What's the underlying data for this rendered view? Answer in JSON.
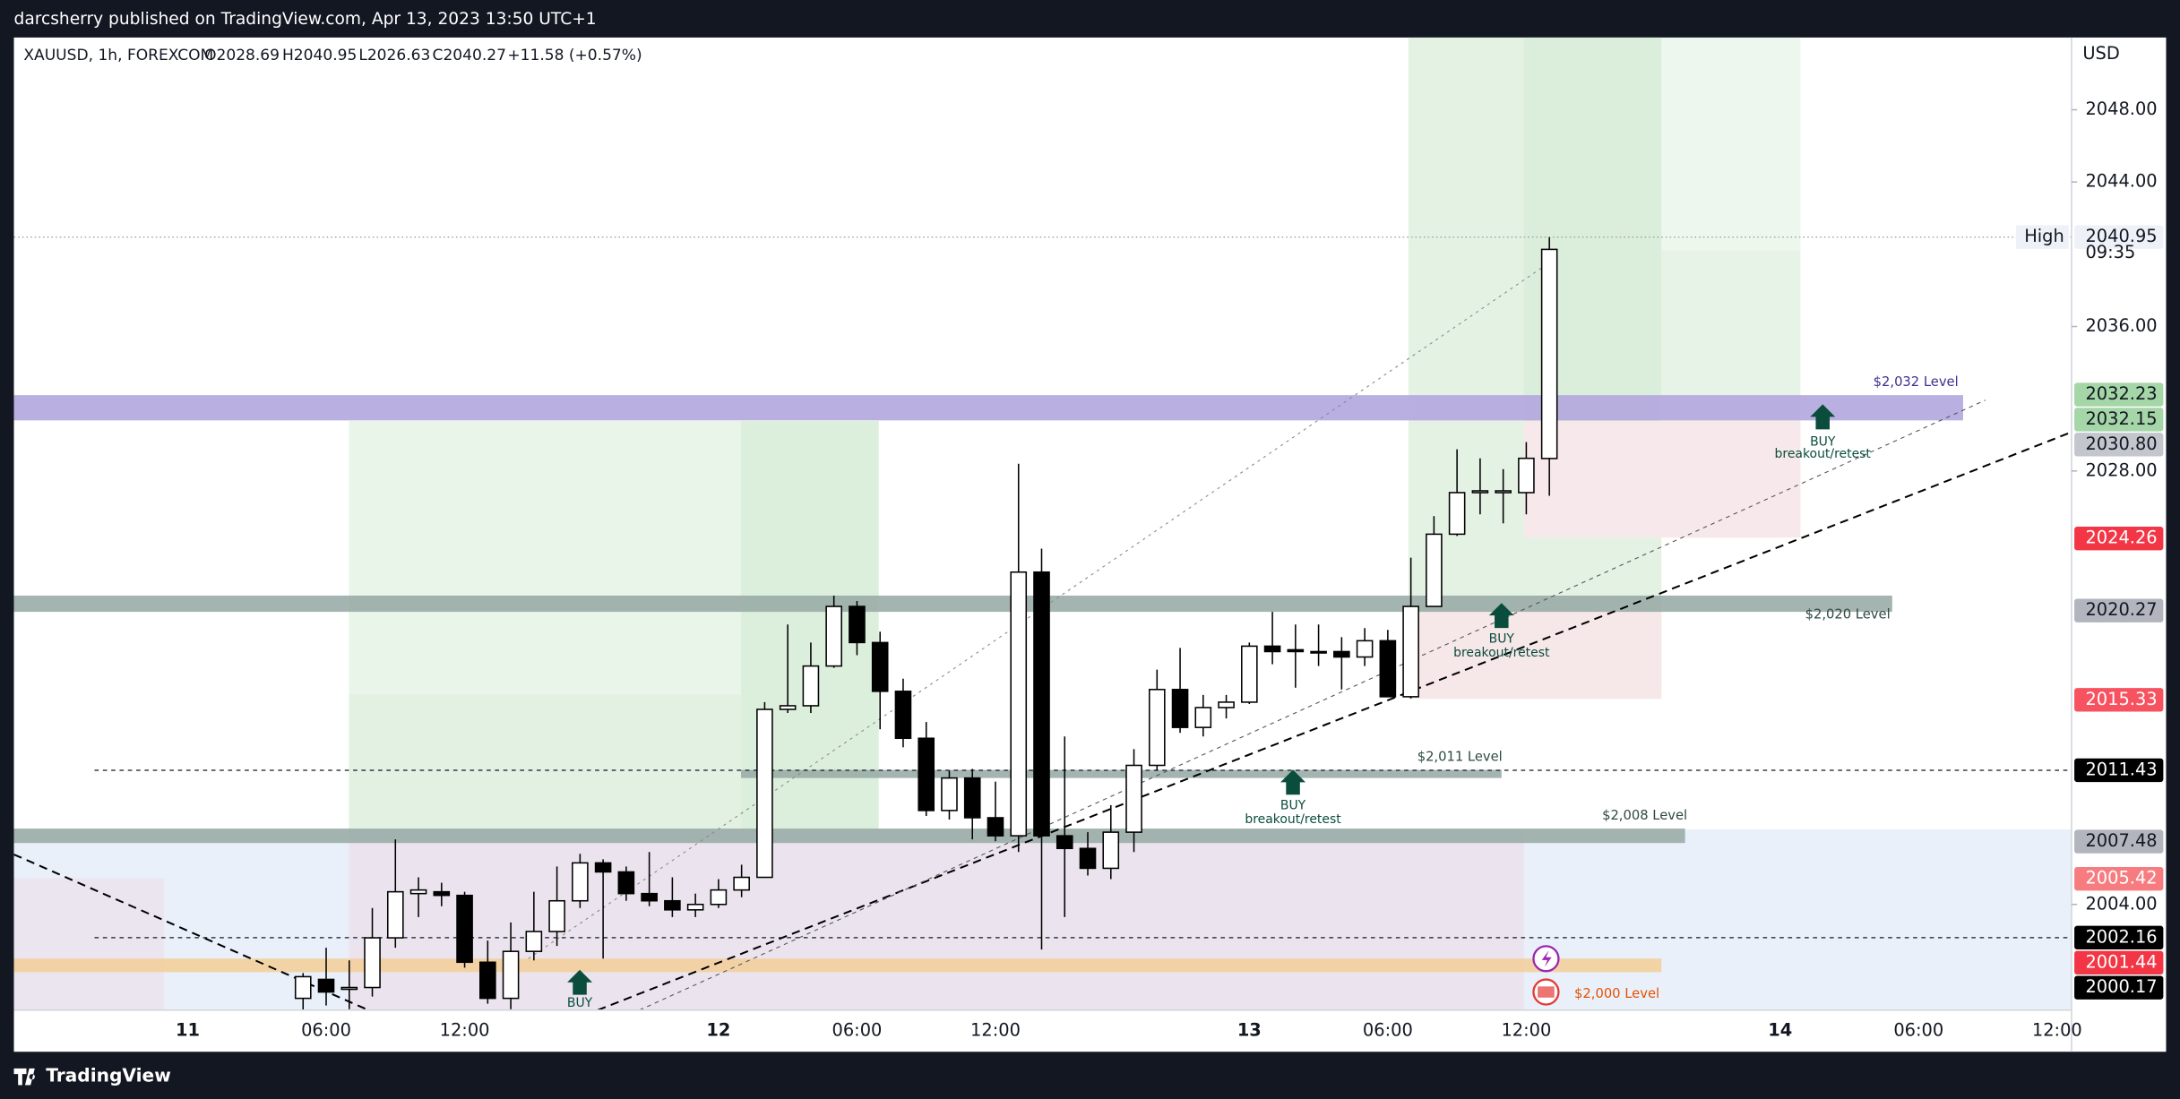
{
  "header": {
    "publisher": "darcsherry published on TradingView.com, Apr 13, 2023 13:50 UTC+1",
    "footer": "TradingView"
  },
  "chart_data": {
    "type": "candlestick",
    "title": "XAUUSD, 1h, FOREXCOM",
    "legend": [
      "O2028.69",
      "H2040.95",
      "L2026.63",
      "C2040.27",
      "+11.58 (+0.57%)"
    ],
    "currency": "USD",
    "countdown": "09:35",
    "categories": [
      "11",
      null,
      null,
      null,
      null,
      null,
      "06:00",
      null,
      null,
      null,
      null,
      null,
      "12:00",
      null,
      null,
      null,
      null,
      null,
      null,
      null,
      null,
      null,
      null,
      "12",
      null,
      null,
      null,
      null,
      null,
      "06:00",
      null,
      null,
      null,
      null,
      null,
      "12:00",
      null,
      null,
      null,
      null,
      null,
      null,
      null,
      null,
      null,
      null,
      "13",
      null,
      null,
      null,
      null,
      null,
      "06:00",
      null,
      null,
      null,
      null,
      null,
      "12:00",
      null,
      null,
      null,
      null,
      null,
      null,
      null,
      null,
      null,
      null,
      "14",
      null,
      null,
      null,
      null,
      null,
      "06:00",
      null,
      null,
      null,
      null,
      null,
      "12:00",
      null
    ],
    "open": [
      null,
      null,
      null,
      null,
      null,
      1998.8,
      1999.85,
      1999.3,
      1999.4,
      2002.15,
      2004.6,
      2004.7,
      2004.5,
      2000.8,
      1998.8,
      2001.4,
      2002.5,
      2004.2,
      2006.3,
      2005.8,
      2004.6,
      2004.2,
      2003.7,
      2004.0,
      2004.8,
      2005.5,
      2014.8,
      2015.0,
      2017.2,
      2020.5,
      2018.5,
      2015.8,
      2013.2,
      2009.2,
      2011.0,
      2008.8,
      2007.8,
      2022.4,
      2007.8,
      2007.1,
      2006.0,
      2008.0,
      2011.7,
      2015.9,
      2013.8,
      2014.9,
      2015.2,
      2018.3,
      2018.1,
      2018.0,
      2018.0,
      2017.7,
      2018.6,
      2015.5,
      2020.5,
      2024.5,
      2026.8,
      2026.8,
      2026.8,
      2028.69,
      null,
      null,
      null,
      null,
      null,
      null,
      null,
      null,
      null,
      null,
      null,
      null,
      null,
      null,
      null,
      null,
      null,
      null,
      null,
      null,
      null,
      null,
      null
    ],
    "high": [
      null,
      null,
      null,
      null,
      null,
      2000.2,
      2001.6,
      2000.9,
      2003.8,
      2007.6,
      2005.5,
      2005.2,
      2004.7,
      2002.0,
      2003.0,
      2004.7,
      2006.1,
      2006.8,
      2006.5,
      2006.1,
      2006.9,
      2005.5,
      2004.6,
      2005.4,
      2006.2,
      2015.2,
      2019.5,
      2018.5,
      2021.1,
      2020.8,
      2019.1,
      2016.5,
      2014.1,
      2011.4,
      2011.5,
      2010.8,
      2028.4,
      2023.7,
      2013.3,
      2008.0,
      2009.5,
      2012.6,
      2017.0,
      2018.2,
      2015.6,
      2015.6,
      2018.5,
      2020.2,
      2019.5,
      2019.5,
      2018.8,
      2019.3,
      2019.2,
      2023.2,
      2025.5,
      2029.2,
      2028.7,
      2028.1,
      2029.6,
      2040.95,
      null,
      null,
      null,
      null,
      null,
      null,
      null,
      null,
      null,
      null,
      null,
      null,
      null,
      null,
      null,
      null,
      null,
      null,
      null,
      null,
      null,
      null,
      null
    ],
    "low": [
      null,
      null,
      null,
      null,
      null,
      1998.0,
      1998.4,
      1998.2,
      1998.9,
      2001.6,
      2003.3,
      2003.9,
      2000.5,
      1998.5,
      1998.2,
      2000.9,
      2001.7,
      2003.8,
      2001.0,
      2004.2,
      2003.9,
      2003.3,
      2003.3,
      2003.8,
      2004.4,
      2005.5,
      2014.6,
      2014.6,
      2017.1,
      2017.8,
      2013.7,
      2012.7,
      2008.9,
      2008.7,
      2007.6,
      2007.5,
      2006.9,
      2001.5,
      2003.3,
      2005.6,
      2005.4,
      2006.9,
      2011.4,
      2013.5,
      2013.3,
      2014.3,
      2015.1,
      2017.3,
      2016.0,
      2017.2,
      2015.9,
      2017.2,
      2015.5,
      2015.4,
      2020.5,
      2024.4,
      2025.6,
      2025.1,
      2025.6,
      2026.63,
      null,
      null,
      null,
      null,
      null,
      null,
      null,
      null,
      null,
      null,
      null,
      null,
      null,
      null,
      null,
      null,
      null,
      null,
      null,
      null,
      null,
      null,
      null
    ],
    "close": [
      null,
      null,
      null,
      null,
      null,
      2000.0,
      1999.15,
      1999.4,
      2002.15,
      2004.7,
      2004.8,
      2004.5,
      2000.8,
      1998.8,
      2001.4,
      2002.5,
      2004.2,
      2006.3,
      2005.8,
      2004.6,
      2004.2,
      2003.7,
      2004.0,
      2004.8,
      2005.5,
      2014.8,
      2015.0,
      2017.2,
      2020.5,
      2018.5,
      2015.8,
      2013.2,
      2009.2,
      2011.0,
      2008.8,
      2007.8,
      2022.4,
      2007.8,
      2007.1,
      2006.0,
      2008.0,
      2011.7,
      2015.9,
      2013.8,
      2014.9,
      2015.2,
      2018.3,
      2018.0,
      2018.0,
      2017.95,
      2017.7,
      2018.6,
      2015.5,
      2020.5,
      2024.5,
      2026.8,
      2026.9,
      2026.9,
      2028.7,
      2040.27,
      null,
      null,
      null,
      null,
      null,
      null,
      null,
      null,
      null,
      null,
      null,
      null,
      null,
      null,
      null,
      null,
      null,
      null,
      null,
      null,
      null,
      null,
      null
    ],
    "up_color": "#ffffff",
    "down_color": "#000000",
    "edge_color": "#000000",
    "ylim": [
      1998.15,
      2052
    ],
    "yticks": [
      {
        "value": 2048,
        "label": "2048.00"
      },
      {
        "value": 2044,
        "label": "2044.00"
      },
      {
        "value": 2036,
        "label": "2036.00"
      },
      {
        "value": 2028,
        "label": "2028.00"
      },
      {
        "value": 2004,
        "label": "2004.00"
      }
    ],
    "price_tags": [
      {
        "value": 2040.95,
        "label": "2040.95",
        "color": "#eef2f8",
        "text_color": "#131722",
        "note": "High",
        "line": "dotted"
      },
      {
        "value": 2032.23,
        "label": "2032.23",
        "color": "#a5d6a7",
        "text_color": "#131722"
      },
      {
        "value": 2032.15,
        "label": "2032.15",
        "color": "#a5d6a7",
        "text_color": "#131722"
      },
      {
        "value": 2030.8,
        "label": "2030.80",
        "color": "#c3c6cc",
        "text_color": "#131722"
      },
      {
        "value": 2024.26,
        "label": "2024.26",
        "color": "#f23645",
        "text_color": "#ffffff"
      },
      {
        "value": 2020.27,
        "label": "2020.27",
        "color": "#b2b5be",
        "text_color": "#131722"
      },
      {
        "value": 2015.33,
        "label": "2015.33",
        "color": "#f7525f",
        "text_color": "#ffffff"
      },
      {
        "value": 2011.43,
        "label": "2011.43",
        "color": "#000000",
        "text_color": "#ffffff",
        "line": "dashed"
      },
      {
        "value": 2007.48,
        "label": "2007.48",
        "color": "#b2b5be",
        "text_color": "#131722"
      },
      {
        "value": 2005.42,
        "label": "2005.42",
        "color": "#f77c80",
        "text_color": "#ffffff"
      },
      {
        "value": 2002.16,
        "label": "2002.16",
        "color": "#000000",
        "text_color": "#ffffff",
        "line": "dashed"
      },
      {
        "value": 2001.44,
        "label": "2001.44",
        "color": "#f23645",
        "text_color": "#ffffff"
      },
      {
        "value": 2000.17,
        "label": "2000.17",
        "color": "#000000",
        "text_color": "#ffffff"
      }
    ],
    "levels": [
      {
        "label": "$2,032 Level",
        "from": 2030.8,
        "to": 2032.2,
        "color": "#b3a6de",
        "text_color": "#3f2f8f"
      },
      {
        "label": "$2,020 Level",
        "from": 2020.2,
        "to": 2021.1,
        "color": "#9aaca7",
        "text_color": "#2f4a44"
      },
      {
        "label": "$2,011 Level",
        "from": 2011.0,
        "to": 2011.45,
        "color": "#9aaca7",
        "text_color": "#2f4a44"
      },
      {
        "label": "$2,008 Level",
        "from": 2007.4,
        "to": 2008.2,
        "color": "#9aaca7",
        "text_color": "#2f4a44"
      },
      {
        "label": "$2,000 Level",
        "from": 2000.25,
        "to": 2001.0,
        "color": "#f3cf9c",
        "text_color": "#e65100"
      }
    ],
    "signals": [
      {
        "label": "BUY"
      },
      {
        "label": "BUY",
        "note": "breakout/retest"
      },
      {
        "label": "BUY",
        "note": "breakout/retest"
      },
      {
        "label": "BUY",
        "note": "breakout/retest"
      }
    ]
  }
}
